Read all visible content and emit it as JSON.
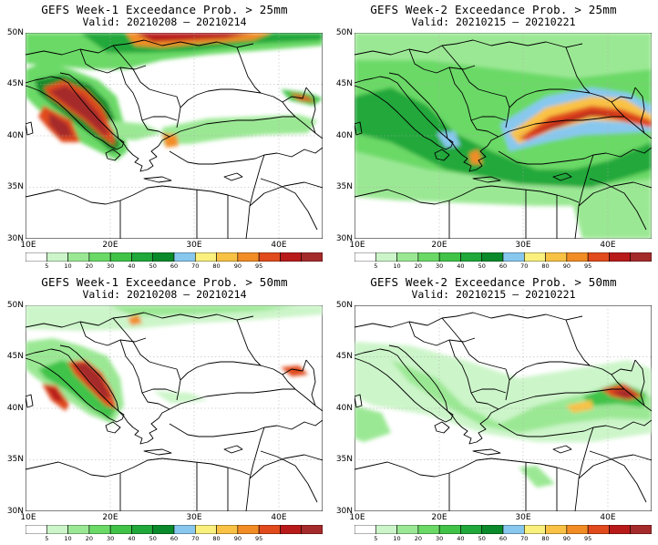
{
  "axes": {
    "lat_labels": [
      "50N",
      "45N",
      "40N",
      "35N",
      "30N"
    ],
    "lon_labels": [
      "10E",
      "20E",
      "30E",
      "40E"
    ]
  },
  "colorbar": {
    "ticks": [
      "5",
      "10",
      "20",
      "30",
      "40",
      "50",
      "60",
      "70",
      "80",
      "90",
      "95"
    ],
    "colors": [
      "#ffffff",
      "#ccf5c9",
      "#9be894",
      "#6ad966",
      "#41c348",
      "#20a83a",
      "#0a8a2a",
      "#88c8ef",
      "#f9f07e",
      "#f9c245",
      "#f28d25",
      "#e04a1d",
      "#b81a1a",
      "#a52a2a"
    ]
  },
  "panels": [
    {
      "title": "GEFS Week-1 Exceedance Prob. > 25mm",
      "valid": "Valid: 20210208 – 20210214"
    },
    {
      "title": "GEFS Week-2 Exceedance Prob. > 25mm",
      "valid": "Valid: 20210215 – 20210221"
    },
    {
      "title": "GEFS Week-1 Exceedance Prob. > 50mm",
      "valid": "Valid: 20210208 – 20210214"
    },
    {
      "title": "GEFS Week-2 Exceedance Prob. > 50mm",
      "valid": "Valid: 20210215 – 20210221"
    }
  ]
}
